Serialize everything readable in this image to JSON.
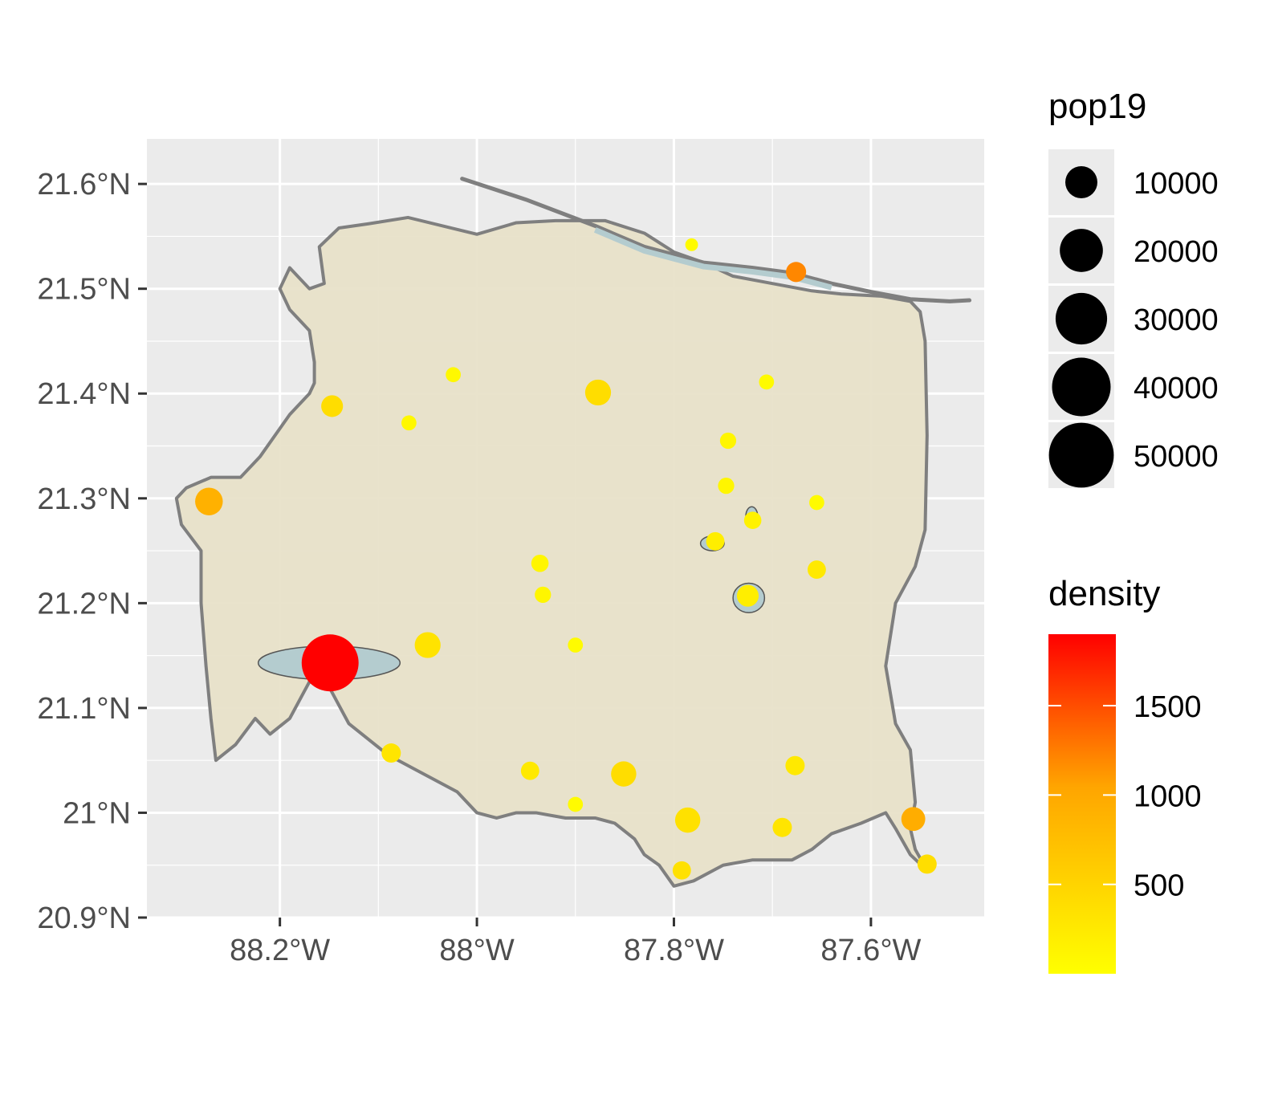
{
  "chart_data": {
    "type": "scatter",
    "title": "",
    "xlabel": "",
    "ylabel": "",
    "xlim": [
      -88.335,
      -87.485
    ],
    "ylim": [
      20.9,
      21.643
    ],
    "grid": true,
    "x_ticks": [
      {
        "value": -88.2,
        "label": "88.2°W"
      },
      {
        "value": -88.0,
        "label": "88°W"
      },
      {
        "value": -87.8,
        "label": "87.8°W"
      },
      {
        "value": -87.6,
        "label": "87.6°W"
      }
    ],
    "y_ticks": [
      {
        "value": 21.6,
        "label": "21.6°N"
      },
      {
        "value": 21.5,
        "label": "21.5°N"
      },
      {
        "value": 21.4,
        "label": "21.4°N"
      },
      {
        "value": 21.3,
        "label": "21.3°N"
      },
      {
        "value": 21.2,
        "label": "21.2°N"
      },
      {
        "value": 21.1,
        "label": "21.1°N"
      },
      {
        "value": 21.0,
        "label": "21°N"
      },
      {
        "value": 20.9,
        "label": "20.9°N"
      }
    ],
    "region_outline": [
      [
        -88.16,
        21.54
      ],
      [
        -88.14,
        21.558
      ],
      [
        -88.11,
        21.562
      ],
      [
        -88.07,
        21.568
      ],
      [
        -88.0,
        21.552
      ],
      [
        -87.96,
        21.563
      ],
      [
        -87.92,
        21.565
      ],
      [
        -87.87,
        21.565
      ],
      [
        -87.83,
        21.553
      ],
      [
        -87.8,
        21.535
      ],
      [
        -87.77,
        21.525
      ],
      [
        -87.74,
        21.512
      ],
      [
        -87.7,
        21.505
      ],
      [
        -87.66,
        21.498
      ],
      [
        -87.63,
        21.495
      ],
      [
        -87.59,
        21.493
      ],
      [
        -87.56,
        21.488
      ],
      [
        -87.55,
        21.478
      ],
      [
        -87.545,
        21.45
      ],
      [
        -87.543,
        21.36
      ],
      [
        -87.545,
        21.27
      ],
      [
        -87.555,
        21.235
      ],
      [
        -87.575,
        21.2
      ],
      [
        -87.585,
        21.14
      ],
      [
        -87.575,
        21.085
      ],
      [
        -87.56,
        21.06
      ],
      [
        -87.555,
        21.01
      ],
      [
        -87.56,
        20.985
      ],
      [
        -87.555,
        20.965
      ],
      [
        -87.543,
        20.945
      ],
      [
        -87.56,
        20.96
      ],
      [
        -87.575,
        20.985
      ],
      [
        -87.585,
        21.0
      ],
      [
        -87.61,
        20.99
      ],
      [
        -87.64,
        20.98
      ],
      [
        -87.66,
        20.965
      ],
      [
        -87.68,
        20.955
      ],
      [
        -87.72,
        20.955
      ],
      [
        -87.75,
        20.95
      ],
      [
        -87.78,
        20.935
      ],
      [
        -87.8,
        20.93
      ],
      [
        -87.815,
        20.95
      ],
      [
        -87.83,
        20.96
      ],
      [
        -87.84,
        20.975
      ],
      [
        -87.86,
        20.99
      ],
      [
        -87.88,
        20.995
      ],
      [
        -87.91,
        20.995
      ],
      [
        -87.94,
        21.0
      ],
      [
        -87.96,
        21.0
      ],
      [
        -87.98,
        20.995
      ],
      [
        -88.0,
        21.0
      ],
      [
        -88.02,
        21.02
      ],
      [
        -88.06,
        21.04
      ],
      [
        -88.09,
        21.055
      ],
      [
        -88.13,
        21.085
      ],
      [
        -88.15,
        21.12
      ],
      [
        -88.17,
        21.125
      ],
      [
        -88.19,
        21.09
      ],
      [
        -88.21,
        21.075
      ],
      [
        -88.225,
        21.09
      ],
      [
        -88.245,
        21.065
      ],
      [
        -88.265,
        21.05
      ],
      [
        -88.27,
        21.09
      ],
      [
        -88.275,
        21.14
      ],
      [
        -88.28,
        21.2
      ],
      [
        -88.28,
        21.25
      ],
      [
        -88.3,
        21.275
      ],
      [
        -88.305,
        21.3
      ],
      [
        -88.295,
        21.31
      ],
      [
        -88.27,
        21.32
      ],
      [
        -88.24,
        21.32
      ],
      [
        -88.22,
        21.34
      ],
      [
        -88.19,
        21.38
      ],
      [
        -88.17,
        21.4
      ],
      [
        -88.165,
        21.41
      ],
      [
        -88.165,
        21.43
      ],
      [
        -88.17,
        21.46
      ],
      [
        -88.19,
        21.48
      ],
      [
        -88.2,
        21.5
      ],
      [
        -88.19,
        21.52
      ],
      [
        -88.17,
        21.5
      ],
      [
        -88.155,
        21.505
      ],
      [
        -88.16,
        21.54
      ]
    ],
    "barrier_island": [
      [
        -88.015,
        21.605
      ],
      [
        -87.95,
        21.585
      ],
      [
        -87.88,
        21.56
      ],
      [
        -87.83,
        21.54
      ],
      [
        -87.77,
        21.525
      ],
      [
        -87.72,
        21.52
      ],
      [
        -87.68,
        21.515
      ],
      [
        -87.64,
        21.505
      ],
      [
        -87.6,
        21.497
      ],
      [
        -87.56,
        21.49
      ],
      [
        -87.52,
        21.488
      ],
      [
        -87.5,
        21.489
      ]
    ],
    "points": [
      {
        "lon": -88.149,
        "lat": 21.143,
        "pop19": 52000,
        "density": 1900
      },
      {
        "lon": -88.272,
        "lat": 21.297,
        "pop19": 10000,
        "density": 900
      },
      {
        "lon": -88.147,
        "lat": 21.388,
        "pop19": 5500,
        "density": 400
      },
      {
        "lon": -88.024,
        "lat": 21.418,
        "pop19": 2000,
        "density": 80
      },
      {
        "lon": -88.069,
        "lat": 21.372,
        "pop19": 2000,
        "density": 80
      },
      {
        "lon": -87.877,
        "lat": 21.401,
        "pop19": 8500,
        "density": 400
      },
      {
        "lon": -88.05,
        "lat": 21.16,
        "pop19": 8500,
        "density": 330
      },
      {
        "lon": -87.936,
        "lat": 21.238,
        "pop19": 3000,
        "density": 100
      },
      {
        "lon": -87.933,
        "lat": 21.208,
        "pop19": 2500,
        "density": 100
      },
      {
        "lon": -87.9,
        "lat": 21.16,
        "pop19": 2000,
        "density": 50
      },
      {
        "lon": -87.782,
        "lat": 21.542,
        "pop19": 1200,
        "density": 50
      },
      {
        "lon": -87.676,
        "lat": 21.516,
        "pop19": 4500,
        "density": 1200
      },
      {
        "lon": -87.706,
        "lat": 21.411,
        "pop19": 2000,
        "density": 50
      },
      {
        "lon": -87.745,
        "lat": 21.355,
        "pop19": 2500,
        "density": 100
      },
      {
        "lon": -87.747,
        "lat": 21.312,
        "pop19": 2500,
        "density": 100
      },
      {
        "lon": -87.655,
        "lat": 21.296,
        "pop19": 2000,
        "density": 50
      },
      {
        "lon": -87.72,
        "lat": 21.279,
        "pop19": 3000,
        "density": 150
      },
      {
        "lon": -87.758,
        "lat": 21.259,
        "pop19": 3500,
        "density": 200
      },
      {
        "lon": -87.655,
        "lat": 21.232,
        "pop19": 3500,
        "density": 250
      },
      {
        "lon": -87.725,
        "lat": 21.207,
        "pop19": 5500,
        "density": 200
      },
      {
        "lon": -88.087,
        "lat": 21.057,
        "pop19": 4000,
        "density": 300
      },
      {
        "lon": -87.946,
        "lat": 21.04,
        "pop19": 3500,
        "density": 250
      },
      {
        "lon": -87.851,
        "lat": 21.037,
        "pop19": 8000,
        "density": 400
      },
      {
        "lon": -87.9,
        "lat": 21.008,
        "pop19": 2000,
        "density": 50
      },
      {
        "lon": -87.786,
        "lat": 20.993,
        "pop19": 8000,
        "density": 350
      },
      {
        "lon": -87.69,
        "lat": 20.986,
        "pop19": 4000,
        "density": 300
      },
      {
        "lon": -87.677,
        "lat": 21.045,
        "pop19": 4000,
        "density": 250
      },
      {
        "lon": -87.557,
        "lat": 20.994,
        "pop19": 7000,
        "density": 950
      },
      {
        "lon": -87.543,
        "lat": 20.951,
        "pop19": 4000,
        "density": 380
      },
      {
        "lon": -87.792,
        "lat": 20.945,
        "pop19": 3500,
        "density": 350
      }
    ],
    "polygons_small": [
      {
        "lon": -88.15,
        "lat": 21.143,
        "rx": 0.072,
        "ry": 0.016
      },
      {
        "lon": -87.724,
        "lat": 21.205,
        "rx": 0.016,
        "ry": 0.014
      },
      {
        "lon": -87.761,
        "lat": 21.257,
        "rx": 0.012,
        "ry": 0.007
      },
      {
        "lon": -87.721,
        "lat": 21.283,
        "rx": 0.006,
        "ry": 0.009
      }
    ]
  },
  "legend": {
    "size_title": "pop19",
    "size_items": [
      {
        "label": "10000",
        "value": 10000
      },
      {
        "label": "20000",
        "value": 20000
      },
      {
        "label": "30000",
        "value": 30000
      },
      {
        "label": "40000",
        "value": 40000
      },
      {
        "label": "50000",
        "value": 50000
      }
    ],
    "color_title": "density",
    "color_range": [
      0,
      1900
    ],
    "color_low": "#FFFF00",
    "color_high": "#FF0000",
    "color_ticks": [
      {
        "label": "1500",
        "value": 1500
      },
      {
        "label": "1000",
        "value": 1000
      },
      {
        "label": "500",
        "value": 500
      }
    ]
  },
  "colors": {
    "panel_bg": "#EBEBEB",
    "grid": "#FFFFFF",
    "land_fill": "#E7E1C8",
    "land_stroke": "#7F7F7F",
    "water_fill": "#B4CCCF"
  }
}
